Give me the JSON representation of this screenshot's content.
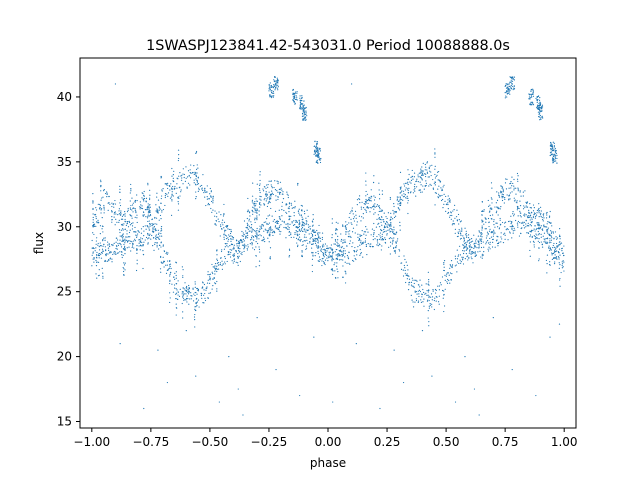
{
  "chart_data": {
    "type": "scatter",
    "title": "1SWASPJ123841.42-543031.0 Period 10088888.0s",
    "xlabel": "phase",
    "ylabel": "flux",
    "xlim": [
      -1.05,
      1.05
    ],
    "ylim": [
      14.5,
      43.0
    ],
    "x_ticks": [
      -1.0,
      -0.75,
      -0.5,
      -0.25,
      0.0,
      0.25,
      0.5,
      0.75,
      1.0
    ],
    "x_tick_labels": [
      "−1.00",
      "−0.75",
      "−0.50",
      "−0.25",
      "0.00",
      "0.25",
      "0.50",
      "0.75",
      "1.00"
    ],
    "y_ticks": [
      15,
      20,
      25,
      30,
      35,
      40
    ],
    "y_tick_labels": [
      "15",
      "20",
      "25",
      "30",
      "35",
      "40"
    ],
    "grid": false,
    "legend": "none",
    "marker_color": "#1f77b4",
    "series": [
      {
        "values_description_x": "phase",
        "upper_branch": [
          [
            -1.0,
            30.0
          ],
          [
            -0.97,
            31.5
          ],
          [
            -0.94,
            32.0
          ],
          [
            -0.9,
            31.0
          ],
          [
            -0.86,
            30.5
          ],
          [
            -0.82,
            31.5
          ],
          [
            -0.78,
            32.0
          ],
          [
            -0.74,
            30.0
          ],
          [
            -0.7,
            32.0
          ],
          [
            -0.66,
            33.2
          ],
          [
            -0.62,
            33.5
          ],
          [
            -0.58,
            34.0
          ],
          [
            -0.54,
            33.5
          ],
          [
            -0.5,
            32.0
          ],
          [
            -0.46,
            30.5
          ],
          [
            -0.42,
            29.0
          ],
          [
            -0.38,
            28.0
          ],
          [
            -0.34,
            30.5
          ],
          [
            -0.3,
            31.5
          ],
          [
            -0.26,
            32.5
          ],
          [
            -0.22,
            33.0
          ],
          [
            -0.18,
            32.0
          ],
          [
            -0.14,
            31.0
          ],
          [
            -0.1,
            30.5
          ],
          [
            -0.06,
            29.5
          ],
          [
            -0.02,
            28.5
          ],
          [
            0.02,
            27.5
          ],
          [
            0.06,
            28.5
          ],
          [
            0.1,
            30.5
          ],
          [
            0.14,
            31.5
          ],
          [
            0.18,
            32.0
          ],
          [
            0.22,
            31.0
          ],
          [
            0.26,
            30.0
          ],
          [
            0.3,
            32.0
          ],
          [
            0.34,
            33.2
          ],
          [
            0.38,
            33.5
          ],
          [
            0.42,
            34.0
          ],
          [
            0.46,
            33.5
          ],
          [
            0.5,
            32.0
          ],
          [
            0.54,
            30.5
          ],
          [
            0.58,
            29.0
          ],
          [
            0.62,
            28.0
          ],
          [
            0.66,
            30.5
          ],
          [
            0.7,
            31.5
          ],
          [
            0.74,
            32.5
          ],
          [
            0.78,
            33.0
          ],
          [
            0.82,
            32.0
          ],
          [
            0.86,
            31.0
          ],
          [
            0.9,
            30.5
          ],
          [
            0.94,
            29.5
          ],
          [
            0.98,
            28.5
          ],
          [
            1.0,
            27.5
          ]
        ],
        "lower_branch": [
          [
            -1.0,
            27.5
          ],
          [
            -0.96,
            28.5
          ],
          [
            -0.92,
            28.0
          ],
          [
            -0.88,
            28.5
          ],
          [
            -0.84,
            29.0
          ],
          [
            -0.8,
            29.0
          ],
          [
            -0.76,
            29.5
          ],
          [
            -0.72,
            29.0
          ],
          [
            -0.68,
            27.0
          ],
          [
            -0.64,
            25.0
          ],
          [
            -0.6,
            24.8
          ],
          [
            -0.56,
            24.5
          ],
          [
            -0.52,
            25.0
          ],
          [
            -0.48,
            26.5
          ],
          [
            -0.44,
            28.0
          ],
          [
            -0.4,
            28.0
          ],
          [
            -0.36,
            28.5
          ],
          [
            -0.32,
            29.0
          ],
          [
            -0.28,
            29.5
          ],
          [
            -0.24,
            30.0
          ],
          [
            -0.2,
            30.5
          ],
          [
            -0.16,
            30.0
          ],
          [
            -0.12,
            29.5
          ],
          [
            -0.08,
            29.0
          ],
          [
            -0.04,
            28.0
          ],
          [
            0.0,
            28.0
          ],
          [
            0.04,
            28.5
          ],
          [
            0.08,
            28.0
          ],
          [
            0.12,
            28.5
          ],
          [
            0.16,
            29.0
          ],
          [
            0.2,
            29.0
          ],
          [
            0.24,
            29.5
          ],
          [
            0.28,
            29.0
          ],
          [
            0.32,
            27.0
          ],
          [
            0.36,
            25.0
          ],
          [
            0.4,
            24.8
          ],
          [
            0.44,
            24.5
          ],
          [
            0.48,
            25.0
          ],
          [
            0.52,
            26.5
          ],
          [
            0.56,
            28.0
          ],
          [
            0.6,
            28.0
          ],
          [
            0.64,
            28.5
          ],
          [
            0.68,
            29.0
          ],
          [
            0.72,
            29.5
          ],
          [
            0.76,
            30.0
          ],
          [
            0.8,
            30.5
          ],
          [
            0.84,
            30.0
          ],
          [
            0.88,
            29.5
          ],
          [
            0.92,
            29.0
          ],
          [
            0.96,
            28.0
          ],
          [
            1.0,
            27.0
          ]
        ],
        "high_clusters": [
          [
            -0.24,
            40.5
          ],
          [
            -0.22,
            41.0
          ],
          [
            -0.14,
            40.0
          ],
          [
            -0.11,
            39.5
          ],
          [
            -0.1,
            38.8
          ],
          [
            -0.05,
            36.0
          ],
          [
            -0.04,
            35.5
          ],
          [
            0.76,
            40.5
          ],
          [
            0.78,
            41.0
          ],
          [
            0.86,
            40.0
          ],
          [
            0.89,
            39.5
          ],
          [
            0.9,
            38.8
          ],
          [
            0.95,
            36.0
          ],
          [
            0.96,
            35.5
          ]
        ],
        "outliers": [
          [
            -0.9,
            41.0
          ],
          [
            -0.88,
            21.0
          ],
          [
            -0.78,
            16.0
          ],
          [
            -0.72,
            20.5
          ],
          [
            -0.68,
            18.0
          ],
          [
            -0.6,
            22.0
          ],
          [
            -0.56,
            18.5
          ],
          [
            -0.46,
            16.5
          ],
          [
            -0.42,
            20.0
          ],
          [
            -0.38,
            17.5
          ],
          [
            -0.36,
            15.5
          ],
          [
            -0.3,
            23.0
          ],
          [
            -0.22,
            19.0
          ],
          [
            -0.12,
            17.0
          ],
          [
            -0.06,
            21.5
          ],
          [
            0.02,
            16.5
          ],
          [
            0.1,
            41.0
          ],
          [
            0.12,
            21.0
          ],
          [
            0.22,
            16.0
          ],
          [
            0.28,
            20.5
          ],
          [
            0.32,
            18.0
          ],
          [
            0.4,
            22.0
          ],
          [
            0.44,
            18.5
          ],
          [
            0.54,
            16.5
          ],
          [
            0.58,
            20.0
          ],
          [
            0.62,
            17.5
          ],
          [
            0.64,
            15.5
          ],
          [
            0.7,
            23.0
          ],
          [
            0.78,
            19.0
          ],
          [
            0.88,
            17.0
          ],
          [
            0.94,
            21.5
          ],
          [
            0.98,
            22.5
          ]
        ]
      }
    ]
  }
}
